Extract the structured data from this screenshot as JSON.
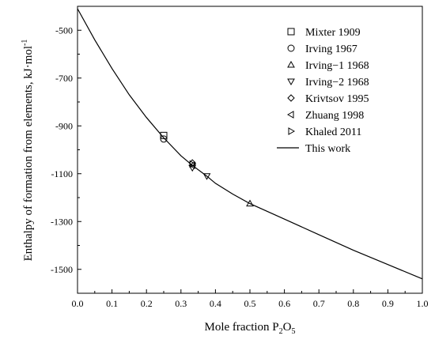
{
  "chart_data": {
    "type": "scatter",
    "xlabel_main": "Mole fraction P",
    "xlabel_sub1": "2",
    "xlabel_mid": "O",
    "xlabel_sub2": "5",
    "ylabel_main": "Enthalpy of formation from elements, kJ·mol",
    "ylabel_sup": "-1",
    "xlim": [
      0.0,
      1.0
    ],
    "ylim": [
      -1600,
      -400
    ],
    "x_ticks": [
      0.0,
      0.1,
      0.2,
      0.3,
      0.4,
      0.5,
      0.6,
      0.7,
      0.8,
      0.9,
      1.0
    ],
    "x_tick_labels": [
      "0.0",
      "0.1",
      "0.2",
      "0.3",
      "0.4",
      "0.5",
      "0.6",
      "0.7",
      "0.8",
      "0.9",
      "1.0"
    ],
    "y_ticks": [
      -500,
      -700,
      -900,
      -1100,
      -1300,
      -1500
    ],
    "y_tick_labels": [
      "-500",
      "-700",
      "-900",
      "-1100",
      "-1300",
      "-1500"
    ],
    "legend_position": "top-right",
    "grid": false,
    "series": [
      {
        "name": "Mixter 1909",
        "marker": "square",
        "points": [
          [
            0.25,
            -940
          ]
        ]
      },
      {
        "name": "Irving 1967",
        "marker": "circle",
        "points": [
          [
            0.25,
            -955
          ]
        ]
      },
      {
        "name": "Irving−1 1968",
        "marker": "triangle-up",
        "points": [
          [
            0.5,
            -1225
          ]
        ]
      },
      {
        "name": "Irving−2 1968",
        "marker": "triangle-down",
        "points": [
          [
            0.333,
            -1075
          ],
          [
            0.375,
            -1110
          ]
        ]
      },
      {
        "name": "Krivtsov 1995",
        "marker": "diamond",
        "points": [
          [
            0.333,
            -1055
          ]
        ]
      },
      {
        "name": "Zhuang 1998",
        "marker": "triangle-left",
        "points": [
          [
            0.333,
            -1065
          ]
        ]
      },
      {
        "name": "Khaled 2011",
        "marker": "triangle-right",
        "points": [
          [
            0.333,
            -1060
          ]
        ]
      },
      {
        "name": "This work",
        "marker": "line",
        "points": [
          [
            0.0,
            -410
          ],
          [
            0.05,
            -540
          ],
          [
            0.1,
            -660
          ],
          [
            0.15,
            -770
          ],
          [
            0.2,
            -865
          ],
          [
            0.25,
            -950
          ],
          [
            0.3,
            -1025
          ],
          [
            0.333,
            -1065
          ],
          [
            0.375,
            -1110
          ],
          [
            0.4,
            -1140
          ],
          [
            0.45,
            -1185
          ],
          [
            0.5,
            -1225
          ],
          [
            0.6,
            -1290
          ],
          [
            0.7,
            -1355
          ],
          [
            0.8,
            -1420
          ],
          [
            0.9,
            -1480
          ],
          [
            1.0,
            -1540
          ]
        ]
      }
    ]
  }
}
